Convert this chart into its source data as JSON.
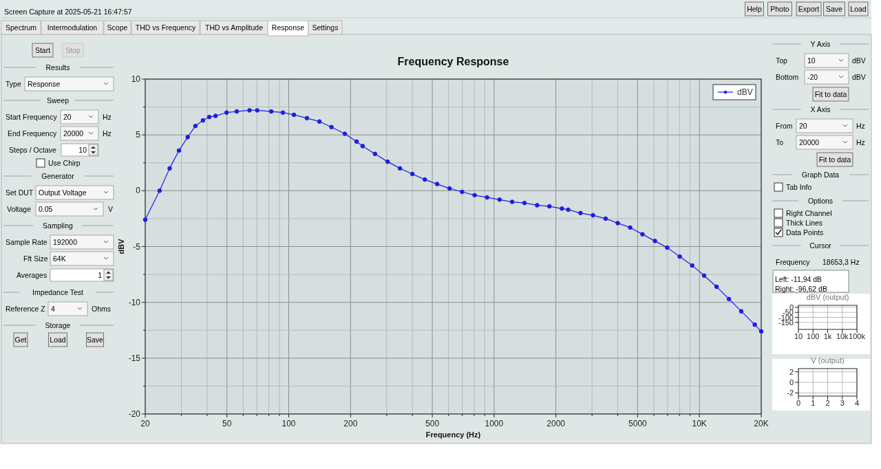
{
  "chart_data": [
    {
      "type": "line",
      "title": "Frequency Response",
      "xlabel": "Frequency (Hz)",
      "ylabel": "dBV",
      "log": "x",
      "grid": true,
      "legend": "top right",
      "marker": "circle",
      "line_style": "solid",
      "xlim": [
        20,
        20000
      ],
      "ylim": [
        -20,
        10
      ],
      "xticks": [
        20,
        {
          "value": 30,
          "label": null
        },
        {
          "value": 40,
          "label": null
        },
        50,
        {
          "value": 60,
          "label": null
        },
        {
          "value": 70,
          "label": null
        },
        {
          "value": 80,
          "label": null
        },
        {
          "value": 90,
          "label": null
        },
        100,
        200,
        {
          "value": 300,
          "label": null
        },
        {
          "value": 400,
          "label": null
        },
        500,
        {
          "value": 600,
          "label": null
        },
        {
          "value": 700,
          "label": null
        },
        {
          "value": 800,
          "label": null
        },
        {
          "value": 900,
          "label": null
        },
        1000,
        2000,
        {
          "value": 3000,
          "label": null
        },
        {
          "value": 4000,
          "label": null
        },
        5000,
        {
          "value": 6000,
          "label": null
        },
        {
          "value": 7000,
          "label": null
        },
        {
          "value": 8000,
          "label": null
        },
        {
          "value": 9000,
          "label": null
        },
        {
          "value": 10000,
          "label": "10K"
        },
        {
          "value": 20000,
          "label": "20K"
        }
      ],
      "yticks": [
        -20,
        {
          "value": -17.5,
          "label": null
        },
        -15,
        {
          "value": -12.5,
          "label": null
        },
        -10,
        {
          "value": -7.5,
          "label": null
        },
        -5,
        {
          "value": -2.5,
          "label": null
        },
        0,
        {
          "value": 2.5,
          "label": null
        },
        5,
        {
          "value": 7.5,
          "label": null
        },
        10
      ],
      "x": [
        20,
        23.5,
        26.3,
        29.2,
        32.2,
        35.1,
        38.2,
        41,
        44,
        49.8,
        55.8,
        64.4,
        70.2,
        82.2,
        93.6,
        106,
        122.6,
        141,
        161.4,
        187.6,
        214,
        229,
        263,
        303,
        348,
        400,
        460,
        528,
        607,
        698,
        804,
        924,
        1063,
        1224,
        1406,
        1620,
        1860,
        2140,
        2296,
        2636,
        3032,
        3492,
        4000,
        4600,
        5280,
        6070,
        6970,
        8020,
        9220,
        10540,
        12120,
        13920,
        15980,
        18600,
        20000
      ],
      "series": [
        {
          "name": "dBV",
          "color": "#1f1fdd",
          "values": [
            -2.6,
            0,
            2,
            3.6,
            4.8,
            5.8,
            6.3,
            6.6,
            6.7,
            7,
            7.1,
            7.2,
            7.2,
            7.1,
            7,
            6.8,
            6.5,
            6.2,
            5.7,
            5.1,
            4.4,
            4,
            3.3,
            2.6,
            2,
            1.5,
            1,
            0.6,
            0.2,
            -0.1,
            -0.4,
            -0.6,
            -0.8,
            -1,
            -1.1,
            -1.3,
            -1.4,
            -1.6,
            -1.7,
            -2,
            -2.2,
            -2.5,
            -2.9,
            -3.3,
            -3.9,
            -4.5,
            -5.1,
            -5.9,
            -6.7,
            -7.6,
            -8.6,
            -9.7,
            -10.8,
            -12,
            -12.6
          ]
        }
      ]
    },
    {
      "type": "other",
      "annotations": [
        "Start",
        "Stop",
        "Results",
        "Type",
        "Response",
        "Sweep",
        "Start Frequency",
        "20",
        "Hz",
        "End Frequency",
        "20000",
        "Hz",
        "Steps / Octave",
        "10",
        "Use Chirp",
        "Generator",
        "Set DUT",
        "Output Voltage",
        "Voltage",
        "0.05",
        "V",
        "Sampling",
        "Sample Rate",
        "192000",
        "Fft Size",
        "64K",
        "Averages",
        "1",
        "Impedance Test",
        "Reference Z",
        "4",
        "Ohms",
        "Storage",
        "Get",
        "Load",
        "Save"
      ]
    },
    {
      "type": "other",
      "annotations": [
        "Y Axis",
        "Top",
        "10",
        "dBV",
        "Bottom",
        "-20",
        "dBV",
        "Fit to data",
        "X Axis",
        "From",
        "20",
        "Hz",
        "To",
        "20000",
        "Hz",
        "Fit to data",
        "Graph Data",
        "Tab Info",
        "Options",
        "Right Channel",
        "Thick Lines",
        "Data Points",
        "Cursor",
        "Frequency",
        "18653,3 Hz",
        "Left: -11,94 dB",
        "Right: -96,62 dB"
      ]
    },
    {
      "type": "other",
      "annotations": [
        "Screen Capture at 2025-05-21 16:47:57",
        "Help",
        "Photo",
        "Export",
        "Save",
        "Load",
        "Spectrum",
        "Intermodulation",
        "Scope",
        "THD vs Frequency",
        "THD vs Amplitude",
        "Response",
        "Settings"
      ]
    },
    {
      "type": "line",
      "title": "dBV (output)",
      "log": "x",
      "grid": true,
      "xlim": [
        10,
        100000
      ],
      "ylim": [
        -220,
        20
      ],
      "xticks": [
        10,
        100,
        {
          "value": 1000,
          "label": "1k"
        },
        {
          "value": 10000,
          "label": "10k"
        },
        {
          "value": 100000,
          "label": "100k"
        }
      ],
      "yticks": [
        -150,
        -100,
        -50,
        0
      ]
    },
    {
      "type": "line",
      "title": "V (output)",
      "grid": true,
      "xlim": [
        0,
        4
      ],
      "ylim": [
        -2.6,
        2.6
      ],
      "xticks": [
        0,
        1,
        2,
        3,
        4
      ],
      "yticks": [
        -2,
        0,
        2
      ]
    }
  ]
}
